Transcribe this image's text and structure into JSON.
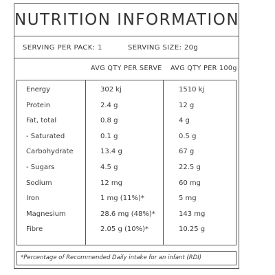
{
  "title": "NUTRITION INFORMATION",
  "serving": {
    "per_pack": "SERVING PER PACK: 1",
    "size": "SERVING SIZE: 20g"
  },
  "columns": {
    "per_serve": "AVG QTY PER SERVE",
    "per_100g": "AVG QTY PER 100g"
  },
  "rows": [
    {
      "label": "Energy",
      "serve": "302 kj",
      "per100": "1510 kj"
    },
    {
      "label": "Protein",
      "serve": "2.4 g",
      "per100": "12 g"
    },
    {
      "label": "Fat, total",
      "serve": "0.8 g",
      "per100": "4 g"
    },
    {
      "label": "- Saturated",
      "serve": "0.1 g",
      "per100": "0.5 g"
    },
    {
      "label": "Carbohydrate",
      "serve": "13.4 g",
      "per100": "67 g"
    },
    {
      "label": "- Sugars",
      "serve": "4.5 g",
      "per100": "22.5 g"
    },
    {
      "label": "Sodium",
      "serve": "12 mg",
      "per100": "60 mg"
    },
    {
      "label": "Iron",
      "serve": "1 mg (11%)*",
      "per100": "5 mg"
    },
    {
      "label": "Magnesium",
      "serve": "28.6 mg (48%)*",
      "per100": "143 mg"
    },
    {
      "label": "Fibre",
      "serve": "2.05 g (10%)*",
      "per100": "10.25 g"
    }
  ],
  "footnote": "*Percentage of Recommended Daily intake for an infant (RDI)"
}
